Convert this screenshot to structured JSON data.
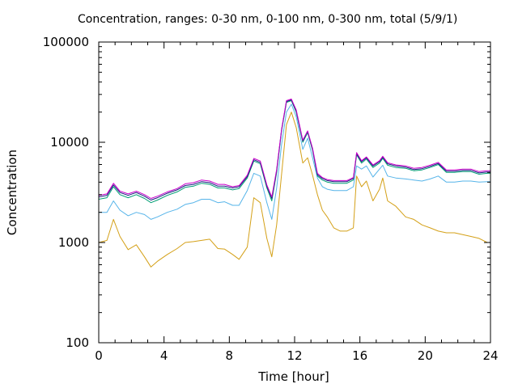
{
  "chart_data": {
    "type": "line",
    "title": "Concentration, ranges: 0-30 nm, 0-100 nm, 0-300 nm, total (5/9/1)",
    "xlabel": "Time [hour]",
    "ylabel": "Concentration",
    "xlim": [
      0,
      24
    ],
    "ylim": [
      100,
      100000
    ],
    "yscale": "log",
    "grid": false,
    "legend": "none",
    "xticks": [
      0,
      4,
      8,
      12,
      16,
      20,
      24
    ],
    "xtick_labels": [
      "0",
      "4",
      "8",
      "12",
      "16",
      "20",
      "24"
    ],
    "yticks": [
      100,
      1000,
      10000,
      100000
    ],
    "ytick_labels": [
      "100",
      "1000",
      "10000",
      "100000"
    ],
    "series": [
      {
        "color": "#d4a017",
        "x": [
          0,
          0.5,
          0.9,
          1.3,
          1.8,
          2.3,
          2.8,
          3.2,
          3.6,
          4.2,
          4.8,
          5.3,
          5.8,
          6.3,
          6.8,
          7.3,
          7.7,
          8.2,
          8.6,
          9.1,
          9.5,
          9.9,
          10.3,
          10.6,
          10.9,
          11.2,
          11.5,
          11.8,
          12.1,
          12.5,
          12.8,
          13.1,
          13.4,
          13.7,
          14.0,
          14.4,
          14.8,
          15.2,
          15.6,
          15.8,
          16.1,
          16.4,
          16.8,
          17.2,
          17.4,
          17.7,
          18.2,
          18.8,
          19.3,
          19.8,
          20.3,
          20.8,
          21.3,
          21.8,
          22.3,
          22.8,
          23.3,
          23.8,
          24
        ],
        "values": [
          1000,
          1050,
          1700,
          1150,
          850,
          950,
          720,
          570,
          650,
          760,
          870,
          1000,
          1020,
          1050,
          1080,
          870,
          860,
          760,
          680,
          900,
          2800,
          2500,
          1100,
          720,
          1500,
          4800,
          15000,
          20000,
          14000,
          6200,
          7000,
          4700,
          3000,
          2100,
          1800,
          1400,
          1300,
          1300,
          1400,
          4600,
          3600,
          4100,
          2600,
          3400,
          4400,
          2600,
          2300,
          1800,
          1700,
          1500,
          1400,
          1300,
          1250,
          1250,
          1200,
          1150,
          1100,
          1000,
          1000
        ]
      },
      {
        "color": "#56b4e9",
        "x": [
          0,
          0.5,
          0.9,
          1.3,
          1.8,
          2.3,
          2.8,
          3.2,
          3.6,
          4.2,
          4.8,
          5.3,
          5.8,
          6.3,
          6.8,
          7.3,
          7.7,
          8.2,
          8.6,
          9.1,
          9.5,
          9.9,
          10.3,
          10.6,
          10.9,
          11.2,
          11.5,
          11.8,
          12.1,
          12.5,
          12.8,
          13.1,
          13.4,
          13.7,
          14.0,
          14.4,
          14.8,
          15.2,
          15.6,
          15.8,
          16.1,
          16.4,
          16.8,
          17.2,
          17.4,
          17.7,
          18.2,
          18.8,
          19.3,
          19.8,
          20.3,
          20.8,
          21.3,
          21.8,
          22.3,
          22.8,
          23.3,
          23.8,
          24
        ],
        "values": [
          2000,
          2000,
          2600,
          2100,
          1850,
          2000,
          1900,
          1700,
          1800,
          2000,
          2150,
          2400,
          2500,
          2700,
          2700,
          2500,
          2550,
          2350,
          2350,
          3300,
          4900,
          4600,
          2500,
          1700,
          3500,
          9500,
          20000,
          24000,
          18000,
          8500,
          11000,
          7000,
          4400,
          3600,
          3400,
          3300,
          3300,
          3300,
          3600,
          5800,
          5400,
          5800,
          4500,
          5400,
          5900,
          4600,
          4400,
          4300,
          4200,
          4100,
          4300,
          4600,
          4000,
          4000,
          4100,
          4100,
          4000,
          4050,
          4050
        ]
      },
      {
        "color": "#009e73",
        "x": [
          0,
          0.5,
          0.9,
          1.3,
          1.8,
          2.3,
          2.8,
          3.2,
          3.6,
          4.2,
          4.8,
          5.3,
          5.8,
          6.3,
          6.8,
          7.3,
          7.7,
          8.2,
          8.6,
          9.1,
          9.5,
          9.9,
          10.3,
          10.6,
          10.9,
          11.2,
          11.5,
          11.8,
          12.1,
          12.5,
          12.8,
          13.1,
          13.4,
          13.7,
          14.0,
          14.4,
          14.8,
          15.2,
          15.6,
          15.8,
          16.1,
          16.4,
          16.8,
          17.2,
          17.4,
          17.7,
          18.2,
          18.8,
          19.3,
          19.8,
          20.3,
          20.8,
          21.3,
          21.8,
          22.3,
          22.8,
          23.3,
          23.8,
          24
        ],
        "values": [
          2700,
          2800,
          3600,
          3000,
          2800,
          3000,
          2750,
          2500,
          2650,
          2950,
          3200,
          3550,
          3650,
          3900,
          3800,
          3500,
          3500,
          3350,
          3450,
          4400,
          6500,
          6100,
          3500,
          2600,
          5000,
          13000,
          25000,
          26000,
          20000,
          10000,
          12500,
          8300,
          4600,
          4200,
          4000,
          3900,
          3900,
          3900,
          4200,
          7500,
          6200,
          6800,
          5600,
          6200,
          6900,
          5900,
          5600,
          5500,
          5200,
          5300,
          5600,
          6000,
          5000,
          5000,
          5100,
          5100,
          4800,
          4900,
          4900
        ]
      },
      {
        "color": "#1a1a80",
        "x": [
          0,
          0.5,
          0.9,
          1.3,
          1.8,
          2.3,
          2.8,
          3.2,
          3.6,
          4.2,
          4.8,
          5.3,
          5.8,
          6.3,
          6.8,
          7.3,
          7.7,
          8.2,
          8.6,
          9.1,
          9.5,
          9.9,
          10.3,
          10.6,
          10.9,
          11.2,
          11.5,
          11.8,
          12.1,
          12.5,
          12.8,
          13.1,
          13.4,
          13.7,
          14.0,
          14.4,
          14.8,
          15.2,
          15.6,
          15.8,
          16.1,
          16.4,
          16.8,
          17.2,
          17.4,
          17.7,
          18.2,
          18.8,
          19.3,
          19.8,
          20.3,
          20.8,
          21.3,
          21.8,
          22.3,
          22.8,
          23.3,
          23.8,
          24
        ],
        "values": [
          2850,
          2950,
          3750,
          3150,
          2950,
          3150,
          2900,
          2650,
          2800,
          3100,
          3350,
          3700,
          3800,
          4050,
          3950,
          3650,
          3650,
          3500,
          3600,
          4550,
          6700,
          6300,
          3650,
          2750,
          5200,
          13300,
          25500,
          26500,
          20500,
          10300,
          12800,
          8500,
          4750,
          4350,
          4150,
          4050,
          4050,
          4050,
          4350,
          7700,
          6400,
          7000,
          5800,
          6400,
          7100,
          6100,
          5800,
          5650,
          5350,
          5450,
          5750,
          6150,
          5150,
          5150,
          5250,
          5250,
          4950,
          5050,
          5050
        ]
      },
      {
        "color": "#cc00cc",
        "x": [
          0,
          0.5,
          0.9,
          1.3,
          1.8,
          2.3,
          2.8,
          3.2,
          3.6,
          4.2,
          4.8,
          5.3,
          5.8,
          6.3,
          6.8,
          7.3,
          7.7,
          8.2,
          8.6,
          9.1,
          9.5,
          9.9,
          10.3,
          10.6,
          10.9,
          11.2,
          11.5,
          11.8,
          12.1,
          12.5,
          12.8,
          13.1,
          13.4,
          13.7,
          14.0,
          14.4,
          14.8,
          15.2,
          15.6,
          15.8,
          16.1,
          16.4,
          16.8,
          17.2,
          17.4,
          17.7,
          18.2,
          18.8,
          19.3,
          19.8,
          20.3,
          20.8,
          21.3,
          21.8,
          22.3,
          22.8,
          23.3,
          23.8,
          24
        ],
        "values": [
          2950,
          3050,
          3900,
          3250,
          3050,
          3250,
          3000,
          2750,
          2900,
          3200,
          3450,
          3850,
          3950,
          4200,
          4100,
          3800,
          3800,
          3600,
          3700,
          4700,
          6900,
          6500,
          3750,
          2850,
          5350,
          13500,
          26000,
          27000,
          21000,
          10500,
          13000,
          8700,
          4900,
          4450,
          4250,
          4150,
          4150,
          4150,
          4450,
          7900,
          6550,
          7150,
          5950,
          6550,
          7250,
          6250,
          5950,
          5800,
          5500,
          5600,
          5900,
          6300,
          5300,
          5300,
          5400,
          5400,
          5100,
          5200,
          5200
        ]
      }
    ]
  }
}
